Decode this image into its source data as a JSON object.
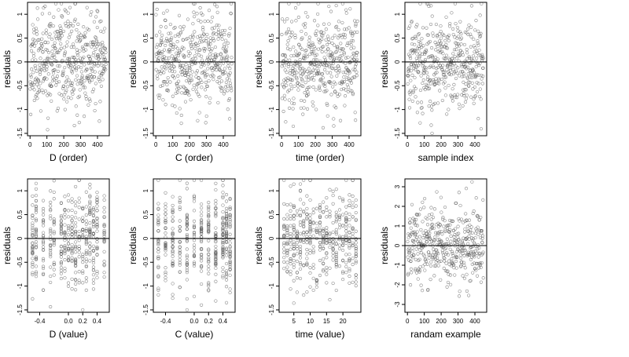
{
  "chart_data": [
    {
      "type": "scatter",
      "xlabel": "D (order)",
      "ylabel": "residuals",
      "xticks": [
        0,
        100,
        200,
        300,
        400
      ],
      "xlim": [
        -15,
        470
      ],
      "yticks": [
        -1.5,
        -1.0,
        -0.5,
        0.0,
        0.5,
        1.0
      ],
      "ylim": [
        -1.55,
        1.25
      ],
      "hline": 0,
      "seed": 11,
      "n": 450,
      "gen": "order",
      "sd": 0.5
    },
    {
      "type": "scatter",
      "xlabel": "C (order)",
      "ylabel": "residuals",
      "xticks": [
        0,
        100,
        200,
        300,
        400
      ],
      "xlim": [
        -15,
        470
      ],
      "yticks": [
        -1.5,
        -1.0,
        -0.5,
        0.0,
        0.5,
        1.0
      ],
      "ylim": [
        -1.55,
        1.25
      ],
      "hline": 0,
      "seed": 23,
      "n": 450,
      "gen": "order",
      "sd": 0.5
    },
    {
      "type": "scatter",
      "xlabel": "time (order)",
      "ylabel": "residuals",
      "xticks": [
        0,
        100,
        200,
        300,
        400
      ],
      "xlim": [
        -15,
        470
      ],
      "yticks": [
        -1.5,
        -1.0,
        -0.5,
        0.0,
        0.5,
        1.0
      ],
      "ylim": [
        -1.55,
        1.25
      ],
      "hline": 0,
      "seed": 37,
      "n": 450,
      "gen": "order",
      "sd": 0.5
    },
    {
      "type": "scatter",
      "xlabel": "sample index",
      "ylabel": "residuals",
      "xticks": [
        0,
        100,
        200,
        300,
        400
      ],
      "xlim": [
        -15,
        470
      ],
      "yticks": [
        -1.5,
        -1.0,
        -0.5,
        0.0,
        0.5,
        1.0
      ],
      "ylim": [
        -1.55,
        1.25
      ],
      "hline": 0,
      "seed": 41,
      "n": 450,
      "gen": "order",
      "sd": 0.5
    },
    {
      "type": "scatter",
      "xlabel": "D (value)",
      "ylabel": "residuals",
      "xticks": [
        -0.4,
        0.0,
        0.2,
        0.4
      ],
      "xtick_labels": [
        "-0.4",
        "0.0",
        "0.2",
        "0.4"
      ],
      "xlim": [
        -0.57,
        0.57
      ],
      "yticks": [
        -1.5,
        -1.0,
        -0.5,
        0.0,
        0.5,
        1.0
      ],
      "ylim": [
        -1.55,
        1.25
      ],
      "hline": 0,
      "seed": 53,
      "n": 450,
      "gen": "levels",
      "levels": [
        -0.5,
        -0.45,
        -0.35,
        -0.25,
        -0.2,
        -0.1,
        -0.05,
        0.0,
        0.05,
        0.1,
        0.15,
        0.2,
        0.25,
        0.3,
        0.35,
        0.4,
        0.5
      ],
      "sd": 0.5
    },
    {
      "type": "scatter",
      "xlabel": "C (value)",
      "ylabel": "residuals",
      "xticks": [
        -0.4,
        0.0,
        0.2,
        0.4
      ],
      "xtick_labels": [
        "-0.4",
        "0.0",
        "0.2",
        "0.4"
      ],
      "xlim": [
        -0.57,
        0.57
      ],
      "yticks": [
        -1.5,
        -1.0,
        -0.5,
        0.0,
        0.5,
        1.0
      ],
      "ylim": [
        -1.55,
        1.25
      ],
      "hline": 0,
      "seed": 67,
      "n": 450,
      "gen": "levels",
      "levels": [
        -0.5,
        -0.4,
        -0.3,
        -0.2,
        -0.1,
        0.0,
        0.1,
        0.2,
        0.3,
        0.4,
        0.45,
        0.5
      ],
      "sd": 0.5
    },
    {
      "type": "scatter",
      "xlabel": "time (value)",
      "ylabel": "residuals",
      "xticks": [
        5,
        10,
        15,
        20
      ],
      "xlim": [
        0.5,
        25.5
      ],
      "yticks": [
        -1.5,
        -1.0,
        -0.5,
        0.0,
        0.5,
        1.0
      ],
      "ylim": [
        -1.55,
        1.25
      ],
      "hline": 0,
      "seed": 79,
      "n": 450,
      "gen": "levels",
      "levels": [
        2,
        3,
        4,
        5,
        6,
        7,
        8,
        9,
        10,
        11,
        12,
        13,
        14,
        15,
        16,
        17,
        18,
        19,
        20,
        21,
        22,
        23,
        24
      ],
      "sd": 0.5
    },
    {
      "type": "scatter",
      "xlabel": "randam example",
      "ylabel": "residuals",
      "xticks": [
        0,
        100,
        200,
        300,
        400
      ],
      "xlim": [
        -15,
        470
      ],
      "yticks": [
        -3,
        -2,
        -1,
        0,
        1,
        2,
        3
      ],
      "ylim": [
        -3.4,
        3.4
      ],
      "hline": 0,
      "seed": 97,
      "n": 450,
      "gen": "order",
      "sd": 1.0
    }
  ]
}
